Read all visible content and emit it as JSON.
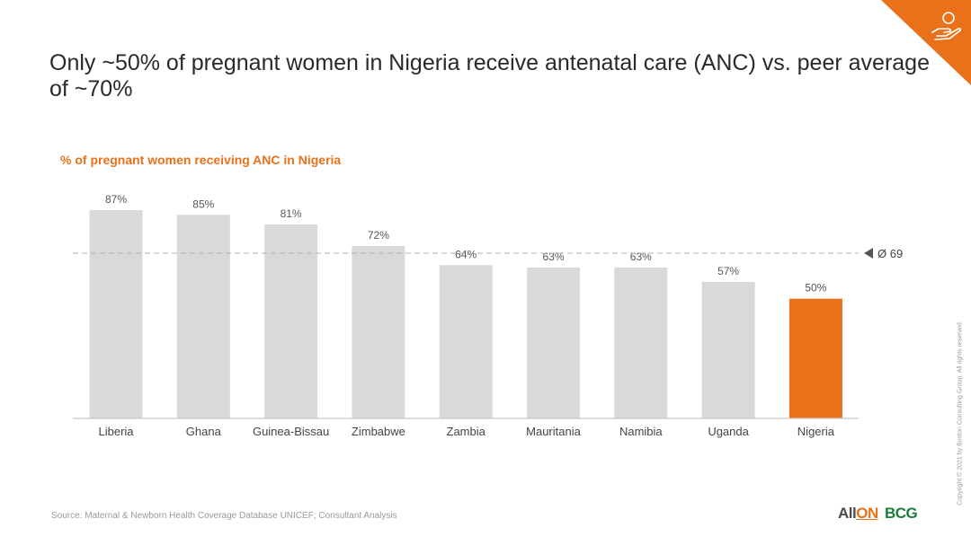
{
  "slide": {
    "title": "Only ~50% of pregnant women in Nigeria receive antenatal care (ANC) vs. peer average of ~70%",
    "source": "Source: Maternal & Newborn Health Coverage Database UNICEF; Consultant Analysis",
    "copyright": "Copyright © 2021 by Boston Consulting Group. All rights reserved.",
    "logo_allon_prefix": "All",
    "logo_allon_suffix": "ON",
    "logo_bcg": "BCG",
    "corner_icon": "hand-holding-money-icon"
  },
  "chart_data": {
    "type": "bar",
    "title": "% of pregnant women receiving ANC in Nigeria",
    "categories": [
      "Liberia",
      "Ghana",
      "Guinea-Bissau",
      "Zimbabwe",
      "Zambia",
      "Mauritania",
      "Namibia",
      "Uganda",
      "Nigeria"
    ],
    "values": [
      87,
      85,
      81,
      72,
      64,
      63,
      63,
      57,
      50
    ],
    "value_labels": [
      "87%",
      "85%",
      "81%",
      "72%",
      "64%",
      "63%",
      "63%",
      "57%",
      "50%"
    ],
    "highlight": "Nigeria",
    "reference_line": {
      "value": 69,
      "label": "Ø 69"
    },
    "ylim": [
      0,
      87
    ],
    "grid": false,
    "colors": {
      "bar": "#d9d9d9",
      "highlight": "#e8711a",
      "reference": "#b0b0b0",
      "axis": "#c8c8c8"
    }
  }
}
